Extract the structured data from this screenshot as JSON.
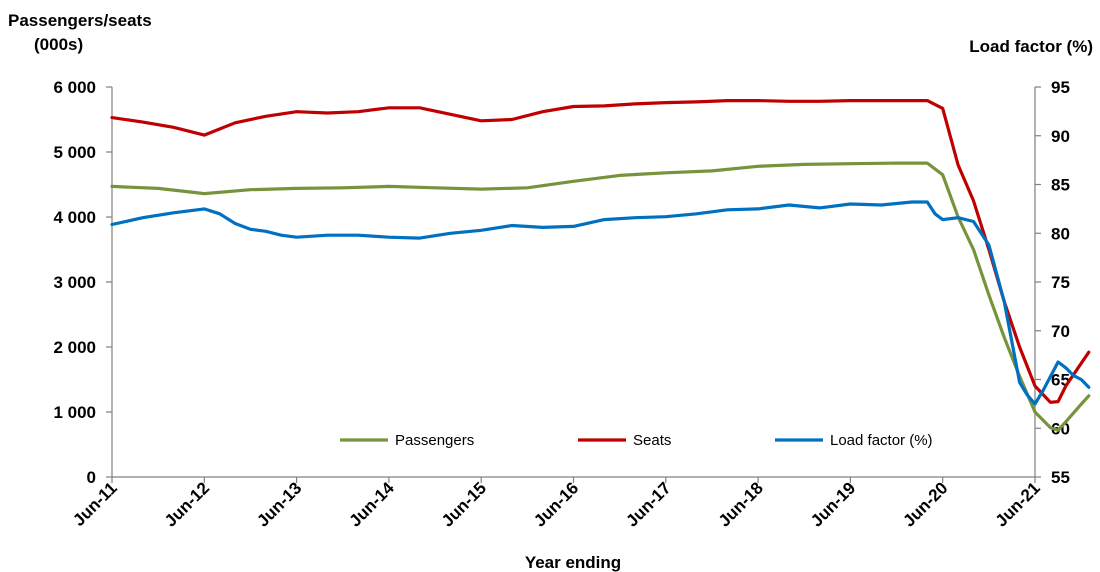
{
  "chart_data": {
    "type": "line",
    "xlabel": "Year ending",
    "ylabel_left": [
      "Passengers/seats",
      "(000s)"
    ],
    "ylabel_right": "Load factor (%)",
    "x_labels": [
      "Jun-11",
      "Jun-12",
      "Jun-13",
      "Jun-14",
      "Jun-15",
      "Jun-16",
      "Jun-17",
      "Jun-18",
      "Jun-19",
      "Jun-20",
      "Jun-21"
    ],
    "ylim_left": [
      0,
      6000
    ],
    "yticks_left": [
      "0",
      "1 000",
      "2 000",
      "3 000",
      "4 000",
      "5 000",
      "6 000"
    ],
    "ylim_right": [
      55,
      95
    ],
    "yticks_right": [
      "55",
      "60",
      "65",
      "70",
      "75",
      "80",
      "85",
      "90",
      "95"
    ],
    "legend_position": "bottom-center",
    "series": [
      {
        "name": "Passengers",
        "axis": "left",
        "color": "#77933C",
        "points": [
          [
            0,
            4470
          ],
          [
            6,
            4440
          ],
          [
            12,
            4360
          ],
          [
            18,
            4420
          ],
          [
            24,
            4440
          ],
          [
            30,
            4450
          ],
          [
            36,
            4470
          ],
          [
            42,
            4450
          ],
          [
            48,
            4430
          ],
          [
            54,
            4450
          ],
          [
            60,
            4550
          ],
          [
            66,
            4640
          ],
          [
            72,
            4680
          ],
          [
            78,
            4710
          ],
          [
            84,
            4780
          ],
          [
            90,
            4810
          ],
          [
            96,
            4820
          ],
          [
            102,
            4830
          ],
          [
            106,
            4830
          ],
          [
            108,
            4650
          ],
          [
            110,
            4000
          ],
          [
            112,
            3500
          ],
          [
            114,
            2800
          ],
          [
            116,
            2150
          ],
          [
            118,
            1550
          ],
          [
            120,
            1000
          ],
          [
            122,
            760
          ],
          [
            123,
            720
          ],
          [
            124,
            850
          ],
          [
            126,
            1120
          ],
          [
            127,
            1250
          ]
        ]
      },
      {
        "name": "Seats",
        "axis": "left",
        "color": "#C00000",
        "points": [
          [
            0,
            5530
          ],
          [
            4,
            5460
          ],
          [
            8,
            5380
          ],
          [
            12,
            5260
          ],
          [
            16,
            5450
          ],
          [
            20,
            5550
          ],
          [
            24,
            5620
          ],
          [
            28,
            5600
          ],
          [
            32,
            5620
          ],
          [
            36,
            5680
          ],
          [
            40,
            5680
          ],
          [
            44,
            5580
          ],
          [
            48,
            5480
          ],
          [
            52,
            5500
          ],
          [
            56,
            5620
          ],
          [
            60,
            5700
          ],
          [
            64,
            5710
          ],
          [
            68,
            5740
          ],
          [
            72,
            5760
          ],
          [
            76,
            5770
          ],
          [
            80,
            5790
          ],
          [
            84,
            5790
          ],
          [
            88,
            5780
          ],
          [
            92,
            5780
          ],
          [
            96,
            5790
          ],
          [
            100,
            5790
          ],
          [
            106,
            5790
          ],
          [
            108,
            5670
          ],
          [
            110,
            4800
          ],
          [
            112,
            4250
          ],
          [
            114,
            3500
          ],
          [
            116,
            2700
          ],
          [
            118,
            2000
          ],
          [
            120,
            1400
          ],
          [
            122,
            1150
          ],
          [
            123,
            1160
          ],
          [
            124,
            1400
          ],
          [
            126,
            1750
          ],
          [
            127,
            1920
          ]
        ]
      },
      {
        "name": "Load factor (%)",
        "axis": "right",
        "color": "#0070C0",
        "points": [
          [
            0,
            80.9
          ],
          [
            4,
            81.6
          ],
          [
            8,
            82.1
          ],
          [
            12,
            82.5
          ],
          [
            14,
            82
          ],
          [
            16,
            81
          ],
          [
            18,
            80.4
          ],
          [
            20,
            80.2
          ],
          [
            22,
            79.8
          ],
          [
            24,
            79.6
          ],
          [
            28,
            79.8
          ],
          [
            32,
            79.8
          ],
          [
            36,
            79.6
          ],
          [
            40,
            79.5
          ],
          [
            44,
            80
          ],
          [
            48,
            80.3
          ],
          [
            52,
            80.8
          ],
          [
            56,
            80.6
          ],
          [
            60,
            80.7
          ],
          [
            64,
            81.4
          ],
          [
            68,
            81.6
          ],
          [
            72,
            81.7
          ],
          [
            76,
            82
          ],
          [
            80,
            82.4
          ],
          [
            84,
            82.5
          ],
          [
            88,
            82.9
          ],
          [
            92,
            82.6
          ],
          [
            96,
            83
          ],
          [
            100,
            82.9
          ],
          [
            104,
            83.2
          ],
          [
            106,
            83.2
          ],
          [
            107,
            82
          ],
          [
            108,
            81.4
          ],
          [
            110,
            81.6
          ],
          [
            112,
            81.2
          ],
          [
            114,
            78.8
          ],
          [
            116,
            73
          ],
          [
            118,
            64.7
          ],
          [
            119,
            63.4
          ],
          [
            120,
            62.5
          ],
          [
            121,
            63.8
          ],
          [
            122,
            65.3
          ],
          [
            123,
            66.8
          ],
          [
            124,
            66.2
          ],
          [
            125,
            65.4
          ],
          [
            126,
            65
          ],
          [
            127,
            64.2
          ]
        ]
      }
    ]
  }
}
